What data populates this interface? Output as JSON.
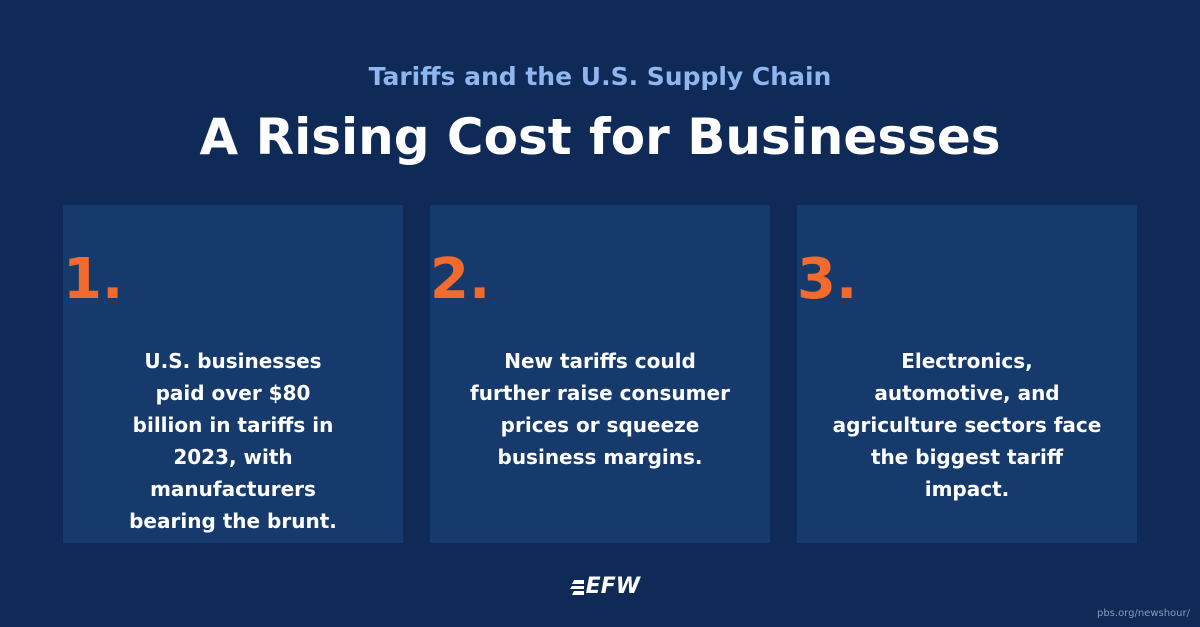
{
  "header": {
    "subtitle": "Tariffs and the U.S. Supply Chain",
    "title": "A Rising Cost for Businesses"
  },
  "cards": [
    {
      "number": "1.",
      "text": "U.S. businesses paid over $80 billion in tariffs in 2023, with manufacturers bearing the brunt."
    },
    {
      "number": "2.",
      "text": "New tariffs could further raise consumer prices or squeeze business margins."
    },
    {
      "number": "3.",
      "text": "Electronics, automotive, and agriculture sectors face the biggest tariff impact."
    }
  ],
  "footer": {
    "logo": "EFW",
    "source": "pbs.org/newshour/"
  }
}
